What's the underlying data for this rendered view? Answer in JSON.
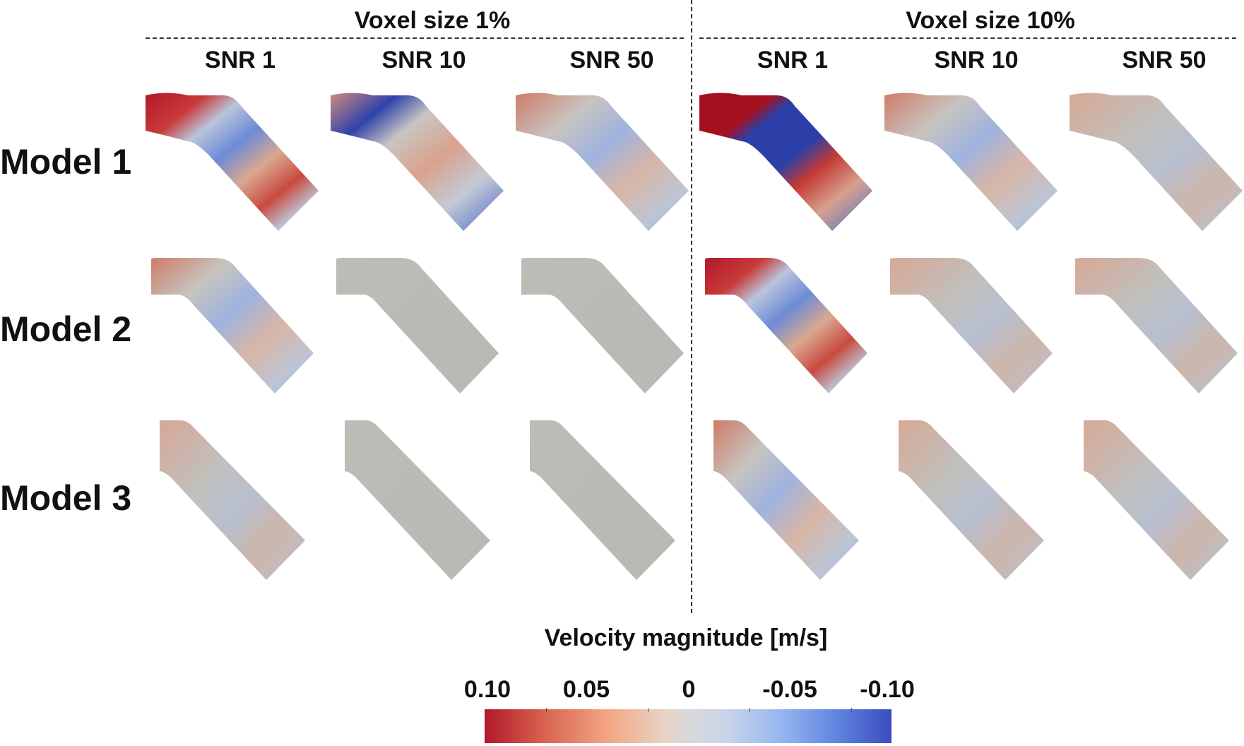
{
  "groups": [
    {
      "title": "Voxel size 1%"
    },
    {
      "title": "Voxel size 10%"
    }
  ],
  "columns": [
    {
      "label": "SNR 1"
    },
    {
      "label": "SNR 10"
    },
    {
      "label": "SNR 50"
    },
    {
      "label": "SNR 1"
    },
    {
      "label": "SNR 10"
    },
    {
      "label": "SNR 50"
    }
  ],
  "rows": [
    {
      "label": "Model 1"
    },
    {
      "label": "Model 2"
    },
    {
      "label": "Model 3"
    }
  ],
  "colorbar": {
    "title": "Velocity magnitude [m/s]",
    "ticks": [
      "0.10",
      "0.05",
      "0",
      "-0.05",
      "-0.10"
    ],
    "min": -0.1,
    "max": 0.1
  },
  "colors": {
    "positive": "#b2182b",
    "neutral": "#bdbdb8",
    "negative": "#3b4cc0",
    "light_positive": "#e59a7e",
    "light_negative": "#8aa6e8"
  }
}
